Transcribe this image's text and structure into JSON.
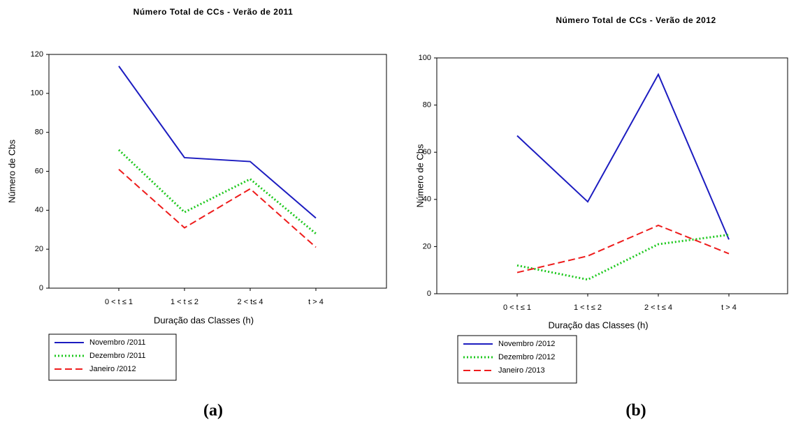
{
  "chart_data": [
    {
      "type": "line",
      "title": "Número Total de CCs  - Verão de 2011",
      "panel_label": "(a)",
      "x_label": "Duração das Classes (h)",
      "y_label": "Número de Cbs",
      "categories": [
        "0 < t ≤ 1",
        "1 < t ≤ 2",
        "2 < t≤ 4",
        "t > 4"
      ],
      "ylim": [
        0,
        120
      ],
      "yticks": [
        0,
        20,
        40,
        60,
        80,
        100,
        120
      ],
      "grid": false,
      "series": [
        {
          "name": "Novembro /2011",
          "color": "#1c1cc0",
          "style": "solid",
          "values": [
            114,
            67,
            65,
            36
          ]
        },
        {
          "name": "Dezembro /2011",
          "color": "#1ec81e",
          "style": "dotted",
          "values": [
            71,
            39,
            56,
            28
          ]
        },
        {
          "name": "Janeiro /2012",
          "color": "#ee1c1c",
          "style": "dashed",
          "values": [
            61,
            31,
            51,
            21
          ]
        }
      ]
    },
    {
      "type": "line",
      "title": "Número Total de CCs - Verão de 2012",
      "panel_label": "(b)",
      "x_label": "Duração das Classes (h)",
      "y_label": "Número de Cbs",
      "categories": [
        "0 < t ≤ 1",
        "1 < t ≤ 2",
        "2 < t ≤ 4",
        "t > 4"
      ],
      "ylim": [
        0,
        100
      ],
      "yticks": [
        0,
        20,
        40,
        60,
        80,
        100
      ],
      "grid": false,
      "series": [
        {
          "name": "Novembro /2012",
          "color": "#1c1cc0",
          "style": "solid",
          "values": [
            67,
            39,
            93,
            23
          ]
        },
        {
          "name": "Dezembro /2012",
          "color": "#1ec81e",
          "style": "dotted",
          "values": [
            12,
            6,
            21,
            25
          ]
        },
        {
          "name": "Janeiro /2013",
          "color": "#ee1c1c",
          "style": "dashed",
          "values": [
            9,
            16,
            29,
            17
          ]
        }
      ]
    }
  ]
}
